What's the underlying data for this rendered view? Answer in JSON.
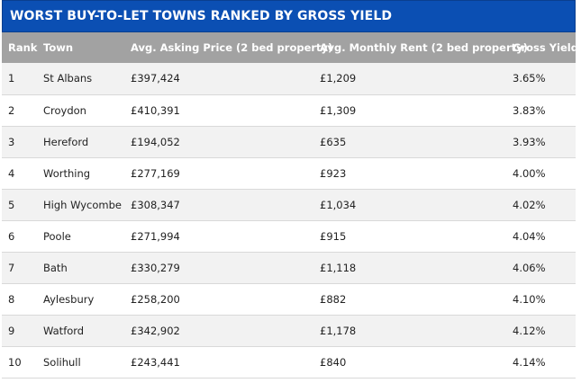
{
  "title": "WORST BUY-TO-LET TOWNS RANKED BY GROSS YIELD",
  "headers": [
    "Rank",
    "Town",
    "Avg. Asking Price (2 bed property)",
    "Avg. Monthly Rent (2 bed property)",
    "Gross Yield"
  ],
  "rows": [
    [
      "1",
      "St Albans",
      "£397,424",
      "£1,209",
      "3.65%"
    ],
    [
      "2",
      "Croydon",
      "£410,391",
      "£1,309",
      "3.83%"
    ],
    [
      "3",
      "Hereford",
      "£194,052",
      "£635",
      "3.93%"
    ],
    [
      "4",
      "Worthing",
      "£277,169",
      "£923",
      "4.00%"
    ],
    [
      "5",
      "High Wycombe",
      "£308,347",
      "£1,034",
      "4.02%"
    ],
    [
      "6",
      "Poole",
      "£271,994",
      "£915",
      "4.04%"
    ],
    [
      "7",
      "Bath",
      "£330,279",
      "£1,118",
      "4.06%"
    ],
    [
      "8",
      "Aylesbury",
      "£258,200",
      "£882",
      "4.10%"
    ],
    [
      "9",
      "Watford",
      "£342,902",
      "£1,178",
      "4.12%"
    ],
    [
      "10",
      "Solihull",
      "£243,441",
      "£840",
      "4.14%"
    ]
  ],
  "colors": {
    "banner": "#0b4fb3",
    "header": "#a2a2a2",
    "row_alt": "#f2f2f2"
  }
}
